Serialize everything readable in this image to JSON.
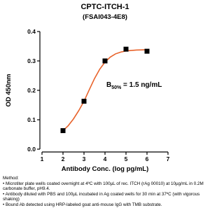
{
  "chart_data": {
    "type": "scatter",
    "title": "CPTC-ITCH-1",
    "subtitle": "(FSAI043-4E8)",
    "x_label": "Antibody Conc. (log pg/mL)",
    "y_label": "OD 450nm",
    "annotation": {
      "main": "B",
      "sub": "50%",
      "rest": " = 1.5 ng/mL"
    },
    "x": [
      2,
      3,
      4,
      5,
      6
    ],
    "values": [
      0.063,
      0.163,
      0.3,
      0.34,
      0.333
    ],
    "color": "#000000",
    "curve": {
      "x": [
        1.9,
        2,
        2.25,
        2.5,
        2.75,
        3,
        3.25,
        3.5,
        3.75,
        4,
        4.25,
        4.5,
        4.75,
        5,
        5.5,
        6,
        6.1
      ],
      "values": [
        0.055,
        0.063,
        0.08,
        0.103,
        0.131,
        0.163,
        0.202,
        0.24,
        0.272,
        0.296,
        0.313,
        0.324,
        0.33,
        0.334,
        0.337,
        0.338,
        0.338
      ],
      "color": "#e8632b"
    },
    "xlim": [
      1,
      7
    ],
    "xticks": [
      1,
      2,
      3,
      4,
      5,
      6,
      7
    ],
    "ylim": [
      0,
      0.4
    ],
    "yticks": [
      {
        "value": 0,
        "label": "0.0"
      },
      0.1,
      0.2,
      0.3,
      0.4
    ]
  },
  "method": {
    "title": "Method:",
    "items": [
      "Microtiter plate wells coated overnight at 4ºC  with 100µL of rec. ITCH (rAg 00010) at 10µg/mL in 0.2M carbonate buffer, pH9.4.",
      "Antibody diluted with PBS and 100µL incubated in Ag coated wells for 30 min at 37ºC (with vigorous shaking)",
      "Bound Ab detected using HRP-labeled goat anti-mouse IgG with TMB substrate."
    ]
  }
}
